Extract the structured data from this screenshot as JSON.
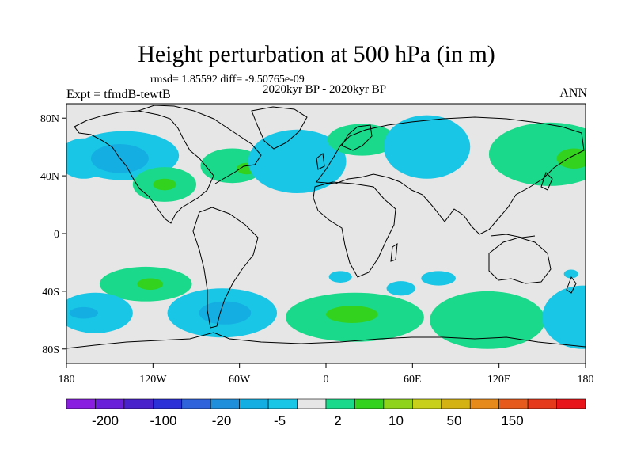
{
  "title": "Height perturbation at 500 hPa (in m)",
  "stats": "rmsd= 1.85592 diff= -9.50765e-09",
  "period": "2020kyr BP - 2020kyr BP",
  "experiment": "Expt = tfmdB-tewtB",
  "season": "ANN",
  "lat_labels": [
    "80N",
    "40N",
    "0",
    "40S",
    "80S"
  ],
  "lon_labels": [
    "180",
    "120W",
    "60W",
    "0",
    "60E",
    "120E",
    "180"
  ],
  "colorbar": {
    "colors": [
      "#8a1ee0",
      "#6a1fd8",
      "#4a22cc",
      "#2b31d6",
      "#2f63dc",
      "#1f8fdc",
      "#15aee2",
      "#19c6e6",
      "#e6e6e6",
      "#1bd98a",
      "#33d21e",
      "#8fd31c",
      "#c9d01b",
      "#d5b214",
      "#e68a1c",
      "#e65a1c",
      "#e63a1c",
      "#e8161a"
    ],
    "labels": [
      "-200",
      "-100",
      "-20",
      "-5",
      "2",
      "10",
      "50",
      "150"
    ]
  },
  "anomalies": [
    {
      "lon": -168,
      "lat": 52,
      "rx": 18,
      "ry": 14,
      "color": "#19c6e6"
    },
    {
      "lon": -140,
      "lat": 54,
      "rx": 38,
      "ry": 17,
      "color": "#19c6e6"
    },
    {
      "lon": -143,
      "lat": 52,
      "rx": 20,
      "ry": 10,
      "color": "#15aee2"
    },
    {
      "lon": -112,
      "lat": 34,
      "rx": 22,
      "ry": 12,
      "color": "#1bd98a"
    },
    {
      "lon": -112,
      "lat": 34,
      "rx": 8,
      "ry": 4,
      "color": "#33d21e"
    },
    {
      "lon": -65,
      "lat": 47,
      "rx": 22,
      "ry": 12,
      "color": "#1bd98a"
    },
    {
      "lon": -55,
      "lat": 45,
      "rx": 7,
      "ry": 4,
      "color": "#33d21e"
    },
    {
      "lon": -20,
      "lat": 50,
      "rx": 34,
      "ry": 22,
      "color": "#19c6e6"
    },
    {
      "lon": 25,
      "lat": 65,
      "rx": 24,
      "ry": 11,
      "color": "#1bd98a"
    },
    {
      "lon": 70,
      "lat": 60,
      "rx": 30,
      "ry": 22,
      "color": "#19c6e6"
    },
    {
      "lon": 155,
      "lat": 55,
      "rx": 42,
      "ry": 22,
      "color": "#1bd98a"
    },
    {
      "lon": 172,
      "lat": 52,
      "rx": 12,
      "ry": 7,
      "color": "#33d21e"
    },
    {
      "lon": -125,
      "lat": -35,
      "rx": 32,
      "ry": 12,
      "color": "#1bd98a"
    },
    {
      "lon": -122,
      "lat": -35,
      "rx": 9,
      "ry": 4,
      "color": "#33d21e"
    },
    {
      "lon": -160,
      "lat": -55,
      "rx": 26,
      "ry": 14,
      "color": "#19c6e6"
    },
    {
      "lon": -168,
      "lat": -55,
      "rx": 10,
      "ry": 4,
      "color": "#15aee2"
    },
    {
      "lon": -72,
      "lat": -55,
      "rx": 38,
      "ry": 17,
      "color": "#19c6e6"
    },
    {
      "lon": -70,
      "lat": -55,
      "rx": 18,
      "ry": 8,
      "color": "#15aee2"
    },
    {
      "lon": 20,
      "lat": -58,
      "rx": 48,
      "ry": 17,
      "color": "#1bd98a"
    },
    {
      "lon": 18,
      "lat": -56,
      "rx": 18,
      "ry": 6,
      "color": "#33d21e"
    },
    {
      "lon": 10,
      "lat": -30,
      "rx": 8,
      "ry": 4,
      "color": "#19c6e6"
    },
    {
      "lon": 78,
      "lat": -31,
      "rx": 12,
      "ry": 5,
      "color": "#19c6e6"
    },
    {
      "lon": 52,
      "lat": -38,
      "rx": 10,
      "ry": 5,
      "color": "#19c6e6"
    },
    {
      "lon": 112,
      "lat": -60,
      "rx": 40,
      "ry": 20,
      "color": "#1bd98a"
    },
    {
      "lon": 178,
      "lat": -58,
      "rx": 28,
      "ry": 22,
      "color": "#19c6e6"
    },
    {
      "lon": 170,
      "lat": -28,
      "rx": 5,
      "ry": 3,
      "color": "#19c6e6"
    }
  ]
}
